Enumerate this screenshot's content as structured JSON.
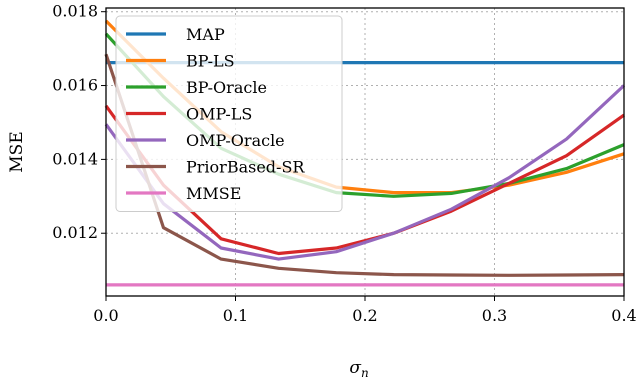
{
  "chart_data": {
    "type": "line",
    "xlabel": "σ",
    "xlabel_sub": "n",
    "ylabel": "MSE",
    "xlim": [
      0,
      0.4
    ],
    "ylim": [
      0.0103,
      0.0181
    ],
    "xticks": [
      0.0,
      0.1,
      0.2,
      0.3,
      0.4
    ],
    "xtick_labels": [
      "0.0",
      "0.1",
      "0.2",
      "0.3",
      "0.4"
    ],
    "yticks": [
      0.012,
      0.014,
      0.016,
      0.018
    ],
    "ytick_labels": [
      "0.012",
      "0.014",
      "0.016",
      "0.018"
    ],
    "grid": true,
    "legend_position": "top-left",
    "x": [
      0.0,
      0.0444,
      0.0889,
      0.1333,
      0.1778,
      0.2222,
      0.2667,
      0.3111,
      0.3556,
      0.4
    ],
    "series": [
      {
        "name": "MAP",
        "color": "#1f77b4",
        "values": [
          0.01662,
          0.01662,
          0.01662,
          0.01662,
          0.01662,
          0.01662,
          0.01662,
          0.01662,
          0.01662,
          0.01662
        ]
      },
      {
        "name": "BP-LS",
        "color": "#ff7f0e",
        "values": [
          0.01775,
          0.0162,
          0.01475,
          0.0138,
          0.01325,
          0.0131,
          0.0131,
          0.0133,
          0.01365,
          0.01415
        ]
      },
      {
        "name": "BP-Oracle",
        "color": "#2ca02c",
        "values": [
          0.0174,
          0.0157,
          0.0143,
          0.0136,
          0.0131,
          0.013,
          0.01308,
          0.01335,
          0.01375,
          0.0144
        ]
      },
      {
        "name": "OMP-LS",
        "color": "#d62728",
        "values": [
          0.01545,
          0.0133,
          0.01185,
          0.01145,
          0.0116,
          0.012,
          0.0126,
          0.01335,
          0.0141,
          0.0152
        ]
      },
      {
        "name": "OMP-Oracle",
        "color": "#9467bd",
        "values": [
          0.01495,
          0.0128,
          0.0116,
          0.0113,
          0.0115,
          0.012,
          0.01265,
          0.0135,
          0.01455,
          0.016
        ]
      },
      {
        "name": "PriorBased-SR",
        "color": "#8c564b",
        "values": [
          0.01685,
          0.01215,
          0.0113,
          0.01105,
          0.01093,
          0.01088,
          0.01087,
          0.01086,
          0.01087,
          0.01088
        ]
      },
      {
        "name": "MMSE",
        "color": "#e377c2",
        "values": [
          0.0106,
          0.0106,
          0.0106,
          0.0106,
          0.0106,
          0.0106,
          0.0106,
          0.0106,
          0.0106,
          0.0106
        ]
      }
    ]
  }
}
